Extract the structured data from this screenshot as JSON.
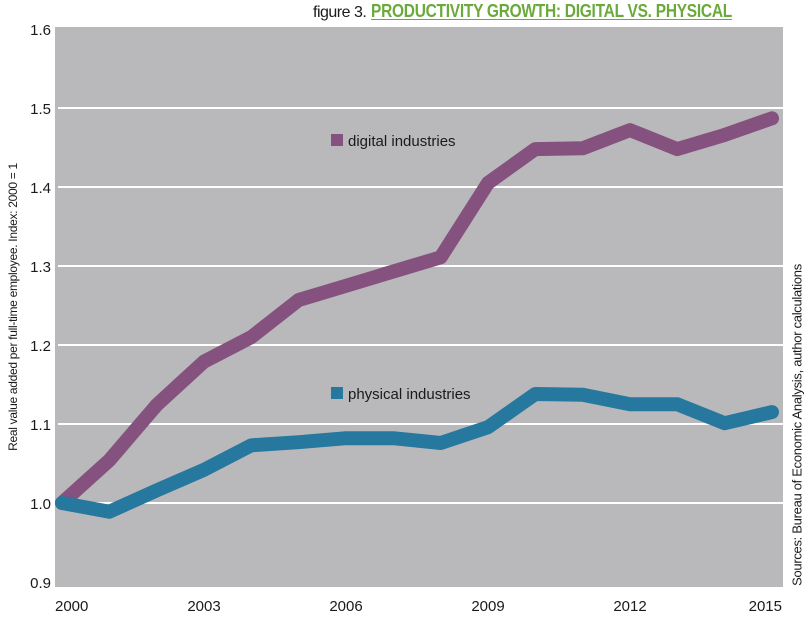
{
  "figure": {
    "prefix": "figure 3.",
    "title": "PRODUCTIVITY GROWTH: DIGITAL VS. PHYSICAL",
    "source": "Sources: Bureau of Economic Analysis, author calculations"
  },
  "colors": {
    "title": "#6aaa3a",
    "plot_background": "#b9b9bb",
    "grid": "#ffffff",
    "digital": "#85527f",
    "physical": "#26789e"
  },
  "chart_data": {
    "type": "line",
    "title": "PRODUCTIVITY GROWTH: DIGITAL VS. PHYSICAL",
    "xlabel": "",
    "ylabel": "Real value added per full-time employee. Index: 2000 = 1",
    "x": [
      2000,
      2001,
      2002,
      2003,
      2004,
      2005,
      2006,
      2007,
      2008,
      2009,
      2010,
      2011,
      2012,
      2013,
      2014,
      2015
    ],
    "series": [
      {
        "name": "digital industries",
        "values": [
          1.0,
          1.054,
          1.124,
          1.179,
          1.21,
          1.257,
          1.275,
          1.293,
          1.311,
          1.405,
          1.448,
          1.449,
          1.472,
          1.448,
          1.466,
          1.487
        ]
      },
      {
        "name": "physical industries",
        "values": [
          1.0,
          0.989,
          1.016,
          1.042,
          1.073,
          1.077,
          1.082,
          1.082,
          1.076,
          1.096,
          1.138,
          1.137,
          1.125,
          1.125,
          1.101,
          1.115
        ]
      }
    ],
    "xlim": [
      2000,
      2015
    ],
    "ylim": [
      0.9,
      1.6
    ],
    "xticks": [
      "2000",
      "2003",
      "2006",
      "2009",
      "2012",
      "2015"
    ],
    "yticks": [
      "0.9",
      "1.0",
      "1.1",
      "1.2",
      "1.3",
      "1.4",
      "1.5",
      "1.6"
    ],
    "grid": true,
    "legend": "inline, near each series"
  }
}
